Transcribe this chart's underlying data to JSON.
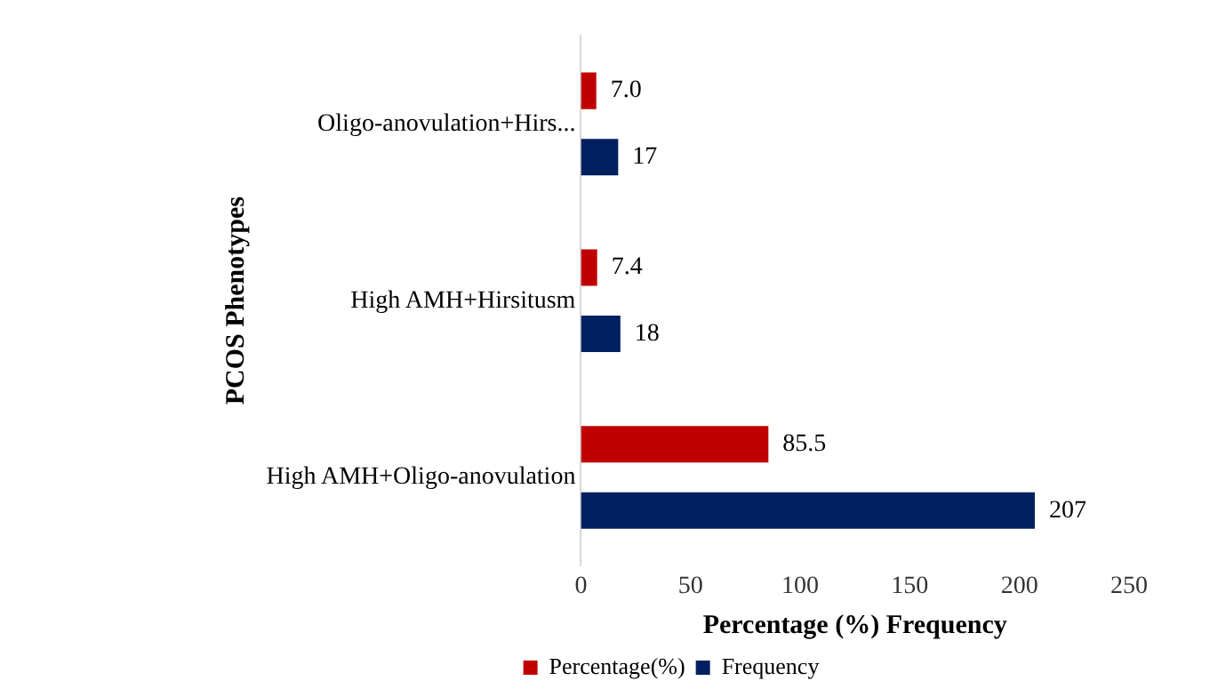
{
  "chart_data": {
    "type": "bar",
    "orientation": "horizontal",
    "xlabel": "Percentage (%) Frequency",
    "ylabel": "PCOS Phenotypes",
    "categories": [
      "Oligo-anovulation+Hirs...",
      "High AMH+Hirsitusm",
      "High AMH+Oligo-anovulation"
    ],
    "series": [
      {
        "name": "Percentage(%)",
        "color": "#c00000",
        "values": [
          7.0,
          7.4,
          85.5
        ],
        "value_labels": [
          "7.0",
          "7.4",
          "85.5"
        ]
      },
      {
        "name": "Frequency",
        "color": "#002060",
        "values": [
          17,
          18,
          207
        ],
        "value_labels": [
          "17",
          "18",
          "207"
        ]
      }
    ],
    "xlim": [
      0,
      250
    ],
    "xticks": [
      0,
      50,
      100,
      150,
      200,
      250
    ],
    "grid": false,
    "legend": "bottom"
  }
}
